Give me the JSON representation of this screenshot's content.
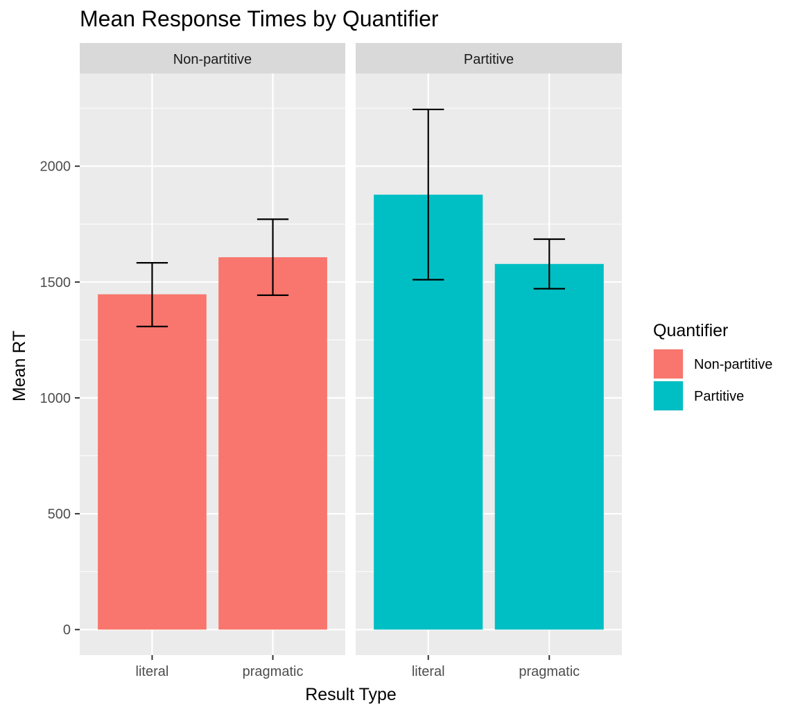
{
  "chart_data": {
    "type": "bar",
    "title": "Mean Response Times by Quantifier",
    "xlabel": "Result Type",
    "ylabel": "Mean RT",
    "ylim": [
      -110,
      2400
    ],
    "y_ticks": [
      0,
      500,
      1000,
      1500,
      2000
    ],
    "y_tick_labels": [
      "0",
      "500",
      "1000",
      "1500",
      "2000"
    ],
    "categories": [
      "literal",
      "pragmatic"
    ],
    "facets": [
      "Non-partitive",
      "Partitive"
    ],
    "series": [
      {
        "name": "Non-partitive",
        "facet": "Non-partitive",
        "color": "#F8766D",
        "values": [
          1447,
          1607
        ],
        "error_low": [
          1308,
          1443
        ],
        "error_high": [
          1583,
          1771
        ]
      },
      {
        "name": "Partitive",
        "facet": "Partitive",
        "color": "#00BFC4",
        "values": [
          1877,
          1578
        ],
        "error_low": [
          1510,
          1471
        ],
        "error_high": [
          2245,
          1685
        ]
      }
    ],
    "legend": {
      "title": "Quantifier",
      "position": "right",
      "entries": [
        "Non-partitive",
        "Partitive"
      ]
    },
    "grid": true,
    "background": "#EBEBEB",
    "strip_background": "#D9D9D9"
  }
}
